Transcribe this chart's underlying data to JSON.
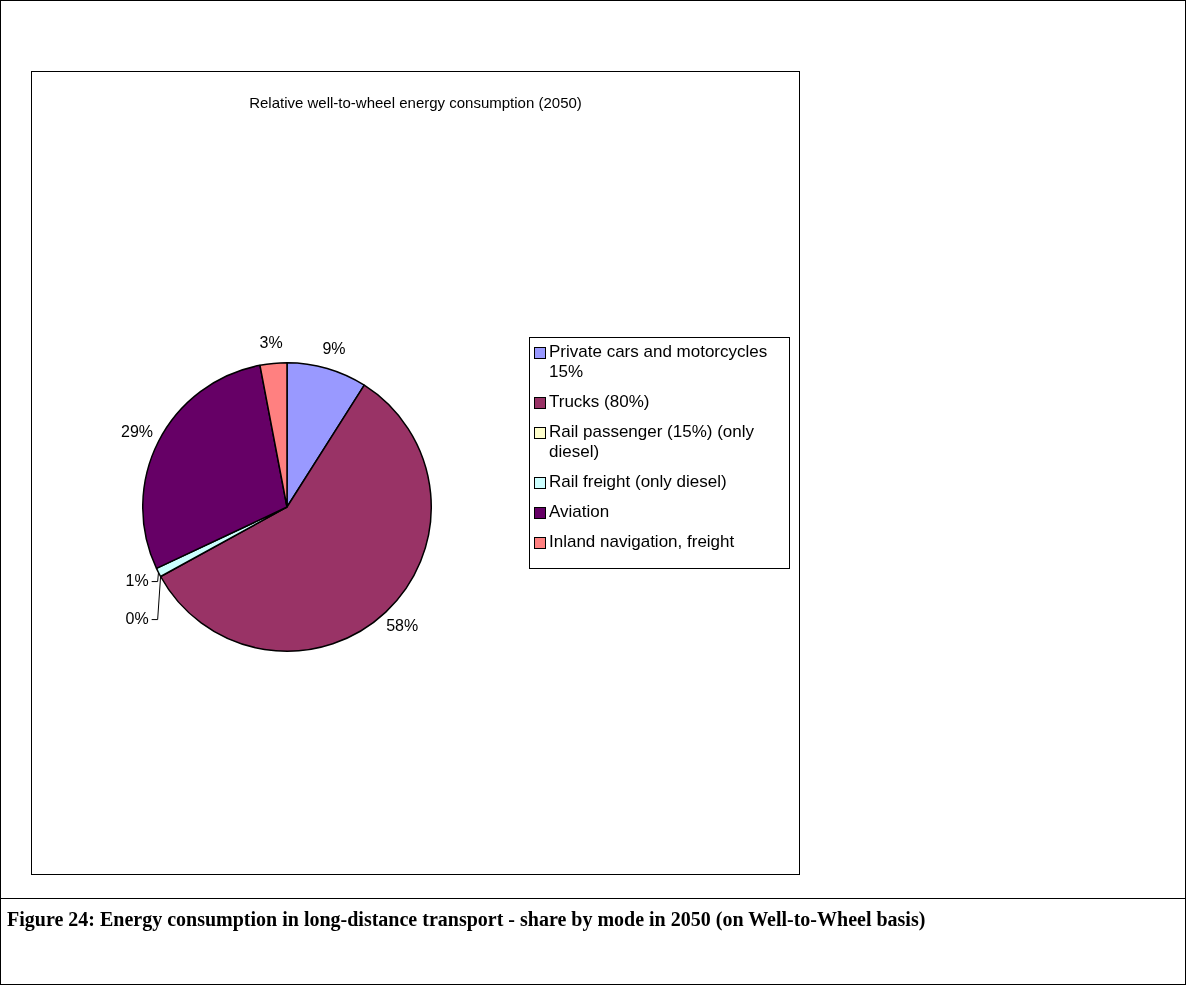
{
  "chart_data": {
    "type": "pie",
    "title": "Relative well-to-wheel energy consumption (2050)",
    "categories": [
      "Private cars and motorcycles 15%",
      "Trucks (80%)",
      "Rail passenger (15%) (only diesel)",
      "Rail freight (only diesel)",
      " Aviation",
      "Inland navigation, freight"
    ],
    "values": [
      9,
      58,
      0,
      1,
      29,
      3
    ],
    "colors": [
      "#9999ff",
      "#993366",
      "#ffffcc",
      "#ccffff",
      "#660066",
      "#ff8080"
    ],
    "value_labels": [
      "9%",
      "58%",
      "0%",
      "1%",
      "29%",
      "3%"
    ],
    "legend": "right",
    "annotations": [
      "Figure 24: Energy consumption in long-distance transport - share by mode in 2050 (on Well-to-Wheel basis)"
    ]
  }
}
